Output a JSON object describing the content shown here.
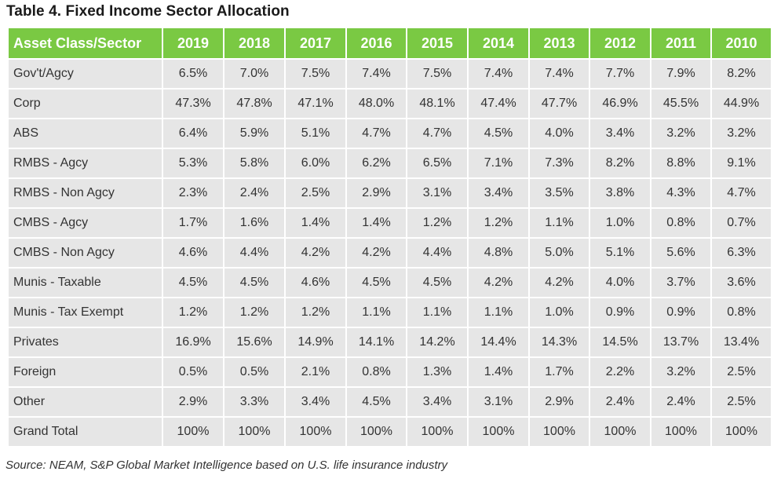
{
  "title": "Table 4. Fixed Income Sector Allocation",
  "headers": [
    "Asset Class/Sector",
    "2019",
    "2018",
    "2017",
    "2016",
    "2015",
    "2014",
    "2013",
    "2012",
    "2011",
    "2010"
  ],
  "rows": [
    [
      "Gov't/Agcy",
      "6.5%",
      "7.0%",
      "7.5%",
      "7.4%",
      "7.5%",
      "7.4%",
      "7.4%",
      "7.7%",
      "7.9%",
      "8.2%"
    ],
    [
      "Corp",
      "47.3%",
      "47.8%",
      "47.1%",
      "48.0%",
      "48.1%",
      "47.4%",
      "47.7%",
      "46.9%",
      "45.5%",
      "44.9%"
    ],
    [
      "ABS",
      "6.4%",
      "5.9%",
      "5.1%",
      "4.7%",
      "4.7%",
      "4.5%",
      "4.0%",
      "3.4%",
      "3.2%",
      "3.2%"
    ],
    [
      "RMBS - Agcy",
      "5.3%",
      "5.8%",
      "6.0%",
      "6.2%",
      "6.5%",
      "7.1%",
      "7.3%",
      "8.2%",
      "8.8%",
      "9.1%"
    ],
    [
      "RMBS - Non Agcy",
      "2.3%",
      "2.4%",
      "2.5%",
      "2.9%",
      "3.1%",
      "3.4%",
      "3.5%",
      "3.8%",
      "4.3%",
      "4.7%"
    ],
    [
      "CMBS - Agcy",
      "1.7%",
      "1.6%",
      "1.4%",
      "1.4%",
      "1.2%",
      "1.2%",
      "1.1%",
      "1.0%",
      "0.8%",
      "0.7%"
    ],
    [
      "CMBS - Non Agcy",
      "4.6%",
      "4.4%",
      "4.2%",
      "4.2%",
      "4.4%",
      "4.8%",
      "5.0%",
      "5.1%",
      "5.6%",
      "6.3%"
    ],
    [
      "Munis - Taxable",
      "4.5%",
      "4.5%",
      "4.6%",
      "4.5%",
      "4.5%",
      "4.2%",
      "4.2%",
      "4.0%",
      "3.7%",
      "3.6%"
    ],
    [
      "Munis - Tax Exempt",
      "1.2%",
      "1.2%",
      "1.2%",
      "1.1%",
      "1.1%",
      "1.1%",
      "1.0%",
      "0.9%",
      "0.9%",
      "0.8%"
    ],
    [
      "Privates",
      "16.9%",
      "15.6%",
      "14.9%",
      "14.1%",
      "14.2%",
      "14.4%",
      "14.3%",
      "14.5%",
      "13.7%",
      "13.4%"
    ],
    [
      "Foreign",
      "0.5%",
      "0.5%",
      "2.1%",
      "0.8%",
      "1.3%",
      "1.4%",
      "1.7%",
      "2.2%",
      "3.2%",
      "2.5%"
    ],
    [
      "Other",
      "2.9%",
      "3.3%",
      "3.4%",
      "4.5%",
      "3.4%",
      "3.1%",
      "2.9%",
      "2.4%",
      "2.4%",
      "2.5%"
    ],
    [
      "Grand Total",
      "100%",
      "100%",
      "100%",
      "100%",
      "100%",
      "100%",
      "100%",
      "100%",
      "100%",
      "100%"
    ]
  ],
  "source": "Source: NEAM, S&P Global Market Intelligence based on U.S. life insurance industry",
  "colors": {
    "header_bg": "#7ac943",
    "row_bg": "#e6e6e6",
    "text": "#333333"
  }
}
